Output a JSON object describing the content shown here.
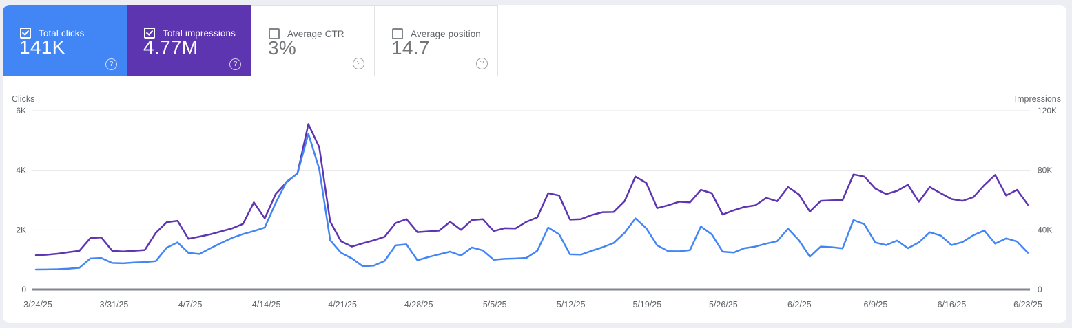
{
  "icons": {
    "help_glyph": "?"
  },
  "colors": {
    "page_background": "#eceef4",
    "card_background": "#ffffff",
    "clicks_accent": "#4285f4",
    "impressions_accent": "#5e35b1",
    "grid_line": "#e6e6e6",
    "baseline": "#80868b",
    "axis_text": "#5f6368"
  },
  "metric_cards": [
    {
      "id": "total-clicks",
      "label": "Total clicks",
      "value": "141K",
      "checked": true,
      "bg": "#4285f4",
      "text": "#ffffff"
    },
    {
      "id": "total-impressions",
      "label": "Total impressions",
      "value": "4.77M",
      "checked": true,
      "bg": "#5e35b1",
      "text": "#ffffff"
    },
    {
      "id": "average-ctr",
      "label": "Average CTR",
      "value": "3%",
      "checked": false,
      "bg": "#ffffff",
      "text": "#757575"
    },
    {
      "id": "average-position",
      "label": "Average position",
      "value": "14.7",
      "checked": false,
      "bg": "#ffffff",
      "text": "#757575"
    }
  ],
  "chart_data": {
    "type": "line",
    "grid": true,
    "legend_position": "none",
    "x_tick_labels": [
      "3/24/25",
      "3/31/25",
      "4/7/25",
      "4/14/25",
      "4/21/25",
      "4/28/25",
      "5/5/25",
      "5/12/25",
      "5/19/25",
      "5/26/25",
      "6/2/25",
      "6/9/25",
      "6/16/25",
      "6/23/25"
    ],
    "left_axis": {
      "title": "Clicks",
      "tick_labels": [
        "0",
        "2K",
        "4K",
        "6K"
      ],
      "tick_values": [
        0,
        2000,
        4000,
        6000
      ],
      "max": 6000
    },
    "right_axis": {
      "title": "Impressions",
      "tick_labels": [
        "0",
        "40K",
        "80K",
        "120K"
      ],
      "tick_values": [
        0,
        40000,
        80000,
        120000
      ],
      "max": 120000
    },
    "series": [
      {
        "name": "Total impressions",
        "axis": "right",
        "color": "#5e35b1",
        "values": [
          23000,
          23300,
          24000,
          25000,
          26000,
          34500,
          35000,
          26000,
          25500,
          26000,
          26500,
          38000,
          45100,
          46100,
          34000,
          35500,
          37000,
          39000,
          41000,
          44000,
          58500,
          47700,
          64000,
          72000,
          78000,
          111000,
          95500,
          45500,
          32300,
          28800,
          31000,
          33000,
          35400,
          44600,
          47200,
          38500,
          39000,
          39500,
          45400,
          40000,
          46600,
          47200,
          39200,
          41100,
          41000,
          45400,
          48400,
          64600,
          63100,
          46900,
          47200,
          50000,
          51900,
          52000,
          59200,
          75800,
          71500,
          54600,
          56500,
          58900,
          58500,
          66900,
          64600,
          50300,
          53100,
          55400,
          56500,
          61500,
          59200,
          68700,
          63800,
          52300,
          59500,
          59800,
          60000,
          77200,
          75800,
          67700,
          64000,
          66200,
          70300,
          58900,
          68700,
          64600,
          60700,
          59500,
          62000,
          70000,
          76900,
          63100,
          66900,
          56900
        ]
      },
      {
        "name": "Total clicks",
        "axis": "left",
        "color": "#4285f4",
        "values": [
          670,
          672,
          680,
          700,
          730,
          1040,
          1060,
          890,
          880,
          905,
          920,
          950,
          1400,
          1580,
          1230,
          1190,
          1380,
          1560,
          1730,
          1860,
          1960,
          2080,
          2900,
          3620,
          3890,
          5230,
          4040,
          1650,
          1230,
          1040,
          780,
          800,
          960,
          1480,
          1515,
          980,
          1090,
          1180,
          1270,
          1140,
          1410,
          1310,
          1000,
          1030,
          1040,
          1060,
          1300,
          2080,
          1850,
          1180,
          1170,
          1300,
          1420,
          1560,
          1900,
          2385,
          2050,
          1480,
          1285,
          1280,
          1320,
          2115,
          1850,
          1270,
          1240,
          1385,
          1440,
          1540,
          1620,
          2040,
          1650,
          1100,
          1440,
          1420,
          1380,
          2330,
          2190,
          1577,
          1490,
          1640,
          1385,
          1580,
          1920,
          1810,
          1490,
          1590,
          1820,
          1980,
          1540,
          1715,
          1610,
          1232
        ]
      }
    ]
  }
}
